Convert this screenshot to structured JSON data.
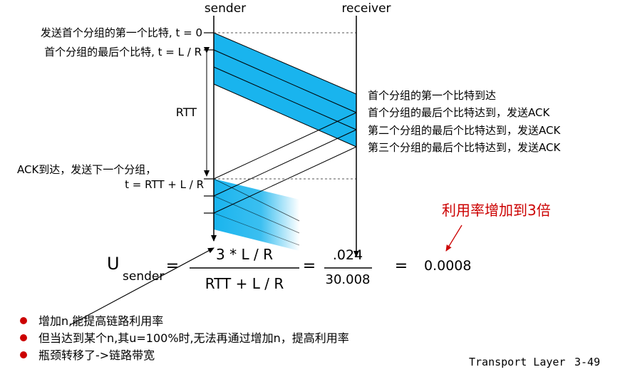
{
  "header": {
    "sender": "sender",
    "receiver": "receiver"
  },
  "left_labels": {
    "send_first_bit": "发送首个分组的第一个比特, t = 0",
    "last_bit": "首个分组的最后个比特, t = L / R",
    "rtt": "RTT",
    "ack_arrive": "ACK到达，发送下一个分组，",
    "t_next": "t = RTT + L / R"
  },
  "right_labels": {
    "first_bit_arrive": "首个分组的第一个比特到达",
    "last_bit_arrive_ack": "首个分组的最后个比特达到，发送ACK",
    "second_last_bit_ack": "第二个分组的最后个比特达到，发送ACK",
    "third_last_bit_ack": "第三个分组的最后个比特达到，发送ACK"
  },
  "annotation": "利用率增加到3倍",
  "formula": {
    "u": "U",
    "sub": "sender",
    "eq1": "=",
    "numerator": "3 * L / R",
    "denominator": "RTT + L / R",
    "eq2": "=",
    "num2": ".024",
    "den2": "30.008",
    "eq3": "=",
    "result": "0.0008"
  },
  "bullets": [
    "增加n,能提高链路利用率",
    "但当达到某个n,其u=100%时,无法再通过增加n，提高利用率",
    "瓶颈转移了->链路带宽"
  ],
  "footer": {
    "title": "Transport Layer",
    "page": "3-49"
  },
  "colors": {
    "packet": "#19b4ee",
    "accent": "#cc0000",
    "ack_line": "#000000"
  }
}
